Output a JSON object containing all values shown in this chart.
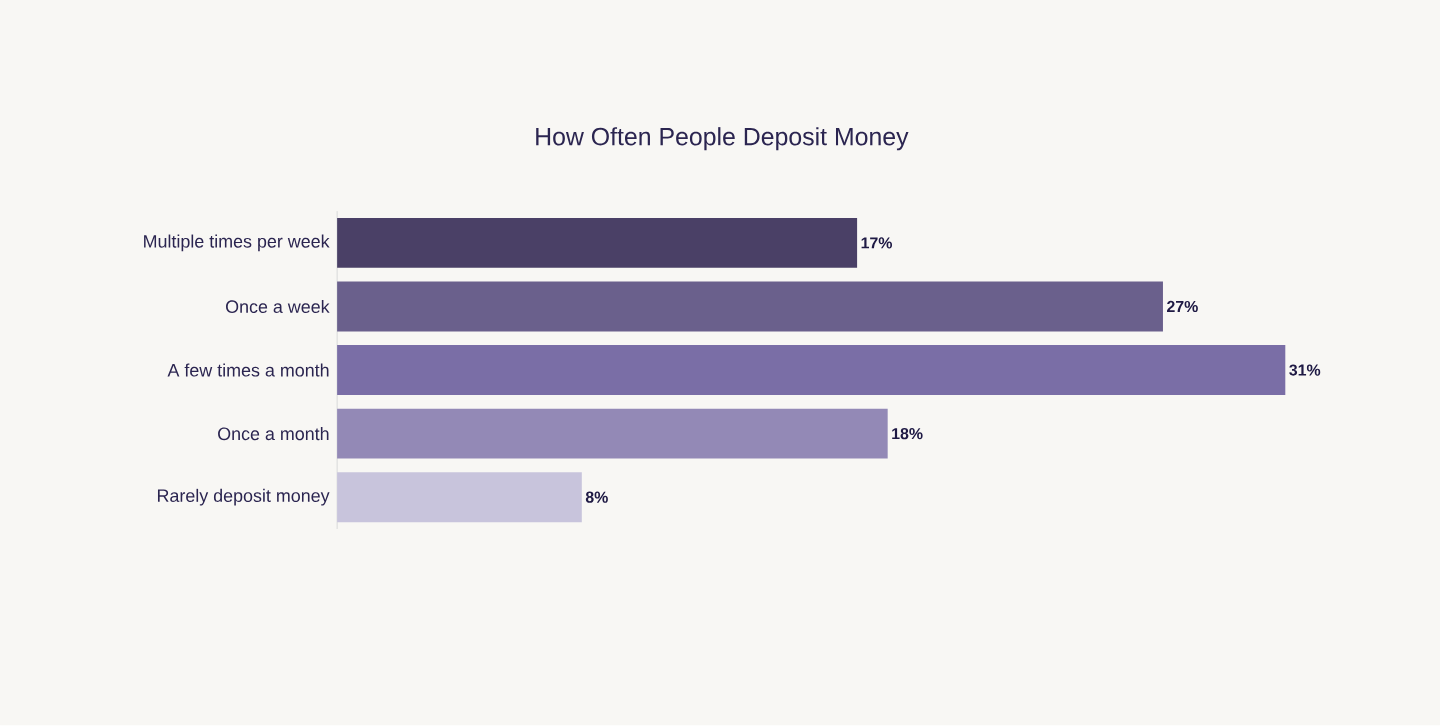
{
  "chart_data": {
    "type": "bar",
    "orientation": "horizontal",
    "title": "How Often People Deposit Money",
    "categories": [
      "Multiple times per week",
      "Once a week",
      "A few times a month",
      "Once a month",
      "Rarely deposit money"
    ],
    "values": [
      17,
      27,
      31,
      18,
      8
    ],
    "value_labels": [
      "17%",
      "27%",
      "31%",
      "18%",
      "8%"
    ],
    "colors": [
      "#4a4066",
      "#6a608c",
      "#7a6ea6",
      "#9389b6",
      "#c8c4dc"
    ]
  }
}
